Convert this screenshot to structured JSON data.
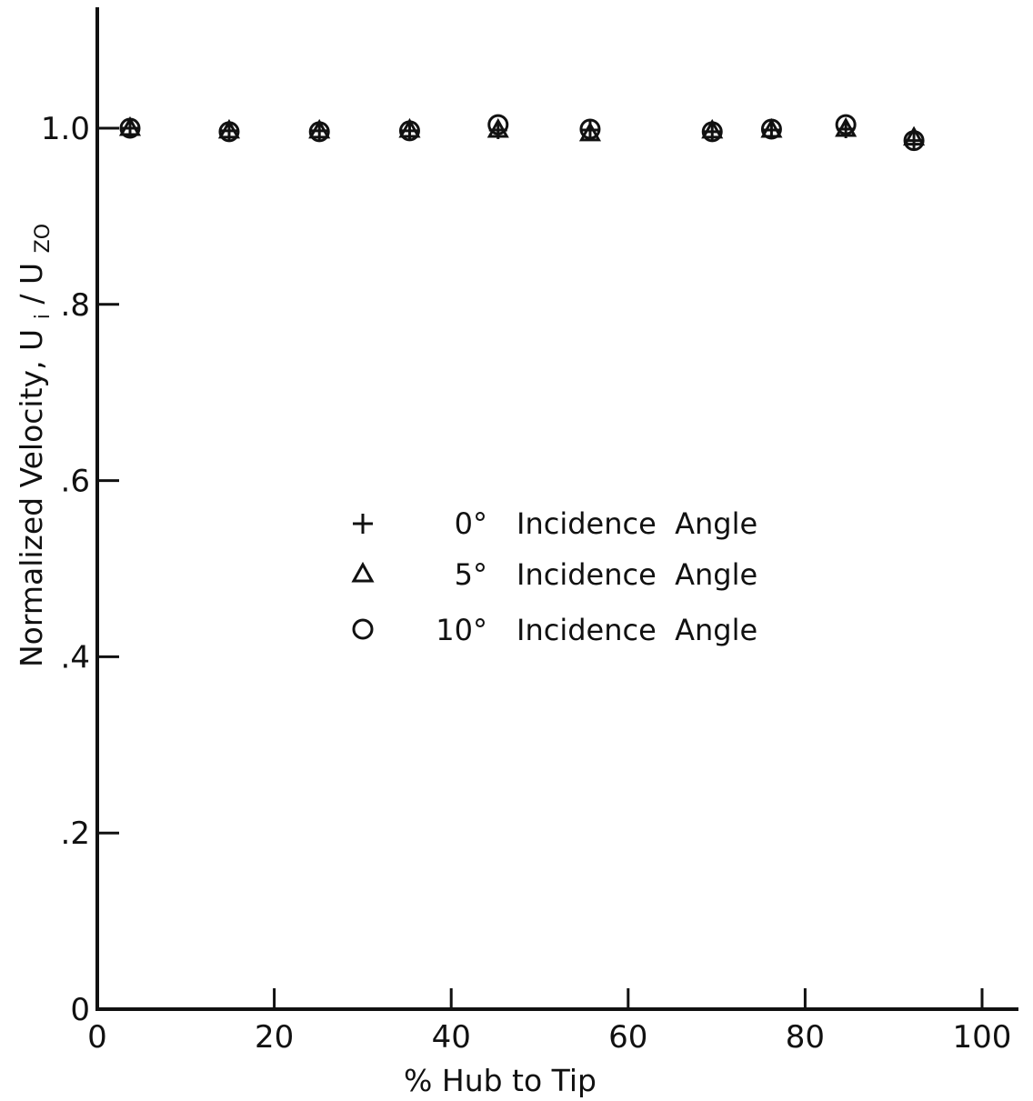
{
  "chart_data": {
    "type": "scatter",
    "xlabel": "% Hub to Tip",
    "ylabel_main": "Normalized  Velocity,",
    "ylabel_symbol": "U",
    "ylabel_num_sub": "i",
    "ylabel_den_sub": "ZO",
    "xlim": [
      0,
      100
    ],
    "ylim": [
      0,
      1.0
    ],
    "x_ticks": [
      {
        "value": 0,
        "label": "0"
      },
      {
        "value": 20,
        "label": "20"
      },
      {
        "value": 40,
        "label": "40"
      },
      {
        "value": 60,
        "label": "60"
      },
      {
        "value": 80,
        "label": "80"
      },
      {
        "value": 100,
        "label": "100"
      }
    ],
    "y_ticks": [
      {
        "value": 0,
        "label": "0"
      },
      {
        "value": 0.2,
        "label": ".2"
      },
      {
        "value": 0.4,
        "label": ".4"
      },
      {
        "value": 0.6,
        "label": ".6"
      },
      {
        "value": 0.8,
        "label": ".8"
      },
      {
        "value": 1.0,
        "label": "1.0"
      }
    ],
    "legend_position": "center",
    "series": [
      {
        "name": "0° Incidence Angle",
        "angle_label": "0°",
        "text_label": "Incidence  Angle",
        "marker": "plus",
        "points": [
          {
            "x": 3.7,
            "y": 1.0
          },
          {
            "x": 14.9,
            "y": 0.997
          },
          {
            "x": 25.1,
            "y": 0.997
          },
          {
            "x": 35.3,
            "y": 0.997
          },
          {
            "x": 45.3,
            "y": 0.998
          },
          {
            "x": 55.7,
            "y": 0.998
          },
          {
            "x": 69.5,
            "y": 0.996
          },
          {
            "x": 76.2,
            "y": 0.998
          },
          {
            "x": 84.6,
            "y": 0.999
          },
          {
            "x": 92.3,
            "y": 0.986
          }
        ]
      },
      {
        "name": "5° Incidence Angle",
        "angle_label": "5°",
        "text_label": "Incidence  Angle",
        "marker": "triangle",
        "points": [
          {
            "x": 3.7,
            "y": 1.0
          },
          {
            "x": 14.9,
            "y": 0.997
          },
          {
            "x": 25.1,
            "y": 0.997
          },
          {
            "x": 35.3,
            "y": 0.998
          },
          {
            "x": 45.3,
            "y": 0.998
          },
          {
            "x": 55.7,
            "y": 0.994
          },
          {
            "x": 69.5,
            "y": 0.997
          },
          {
            "x": 76.2,
            "y": 0.998
          },
          {
            "x": 84.6,
            "y": 0.999
          },
          {
            "x": 92.3,
            "y": 0.989
          }
        ]
      },
      {
        "name": "10° Incidence Angle",
        "angle_label": "10°",
        "text_label": "Incidence  Angle",
        "marker": "circle",
        "points": [
          {
            "x": 3.7,
            "y": 1.0
          },
          {
            "x": 14.9,
            "y": 0.996
          },
          {
            "x": 25.1,
            "y": 0.996
          },
          {
            "x": 35.3,
            "y": 0.997
          },
          {
            "x": 45.3,
            "y": 1.004
          },
          {
            "x": 55.7,
            "y": 0.999
          },
          {
            "x": 69.5,
            "y": 0.996
          },
          {
            "x": 76.2,
            "y": 0.999
          },
          {
            "x": 84.6,
            "y": 1.004
          },
          {
            "x": 92.3,
            "y": 0.986
          }
        ]
      }
    ]
  }
}
